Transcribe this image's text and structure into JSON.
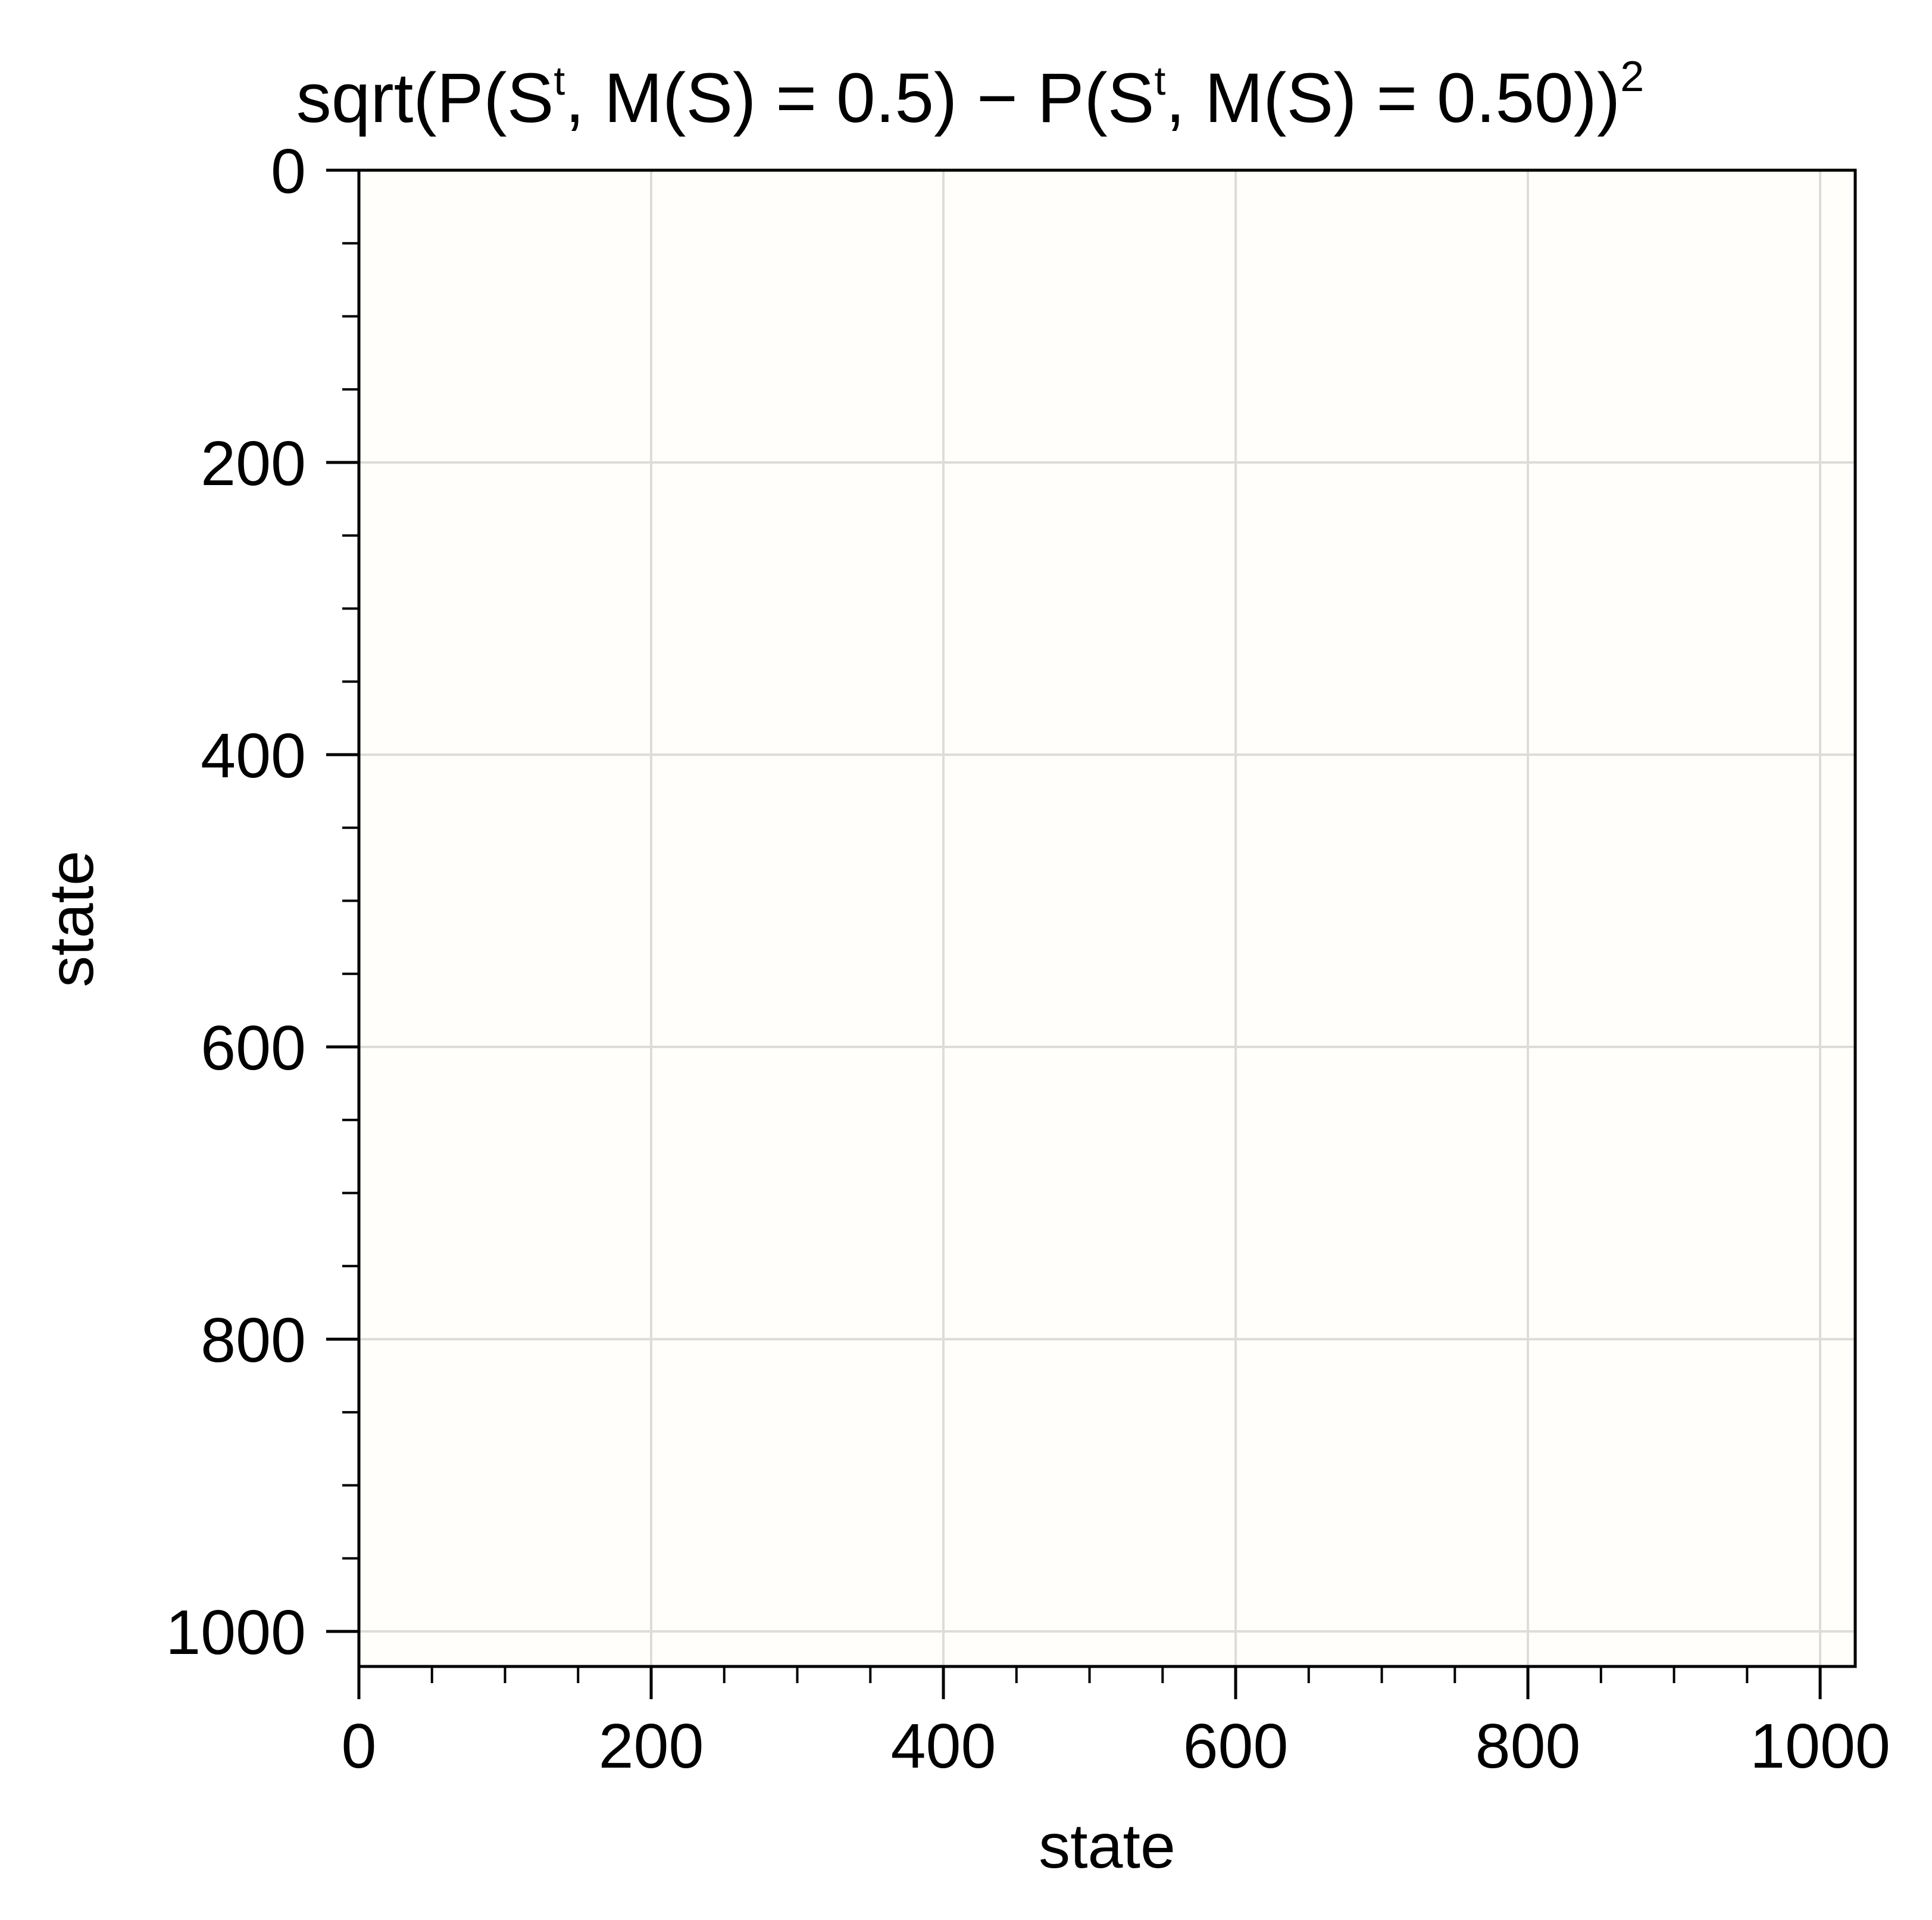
{
  "colors": {
    "plot_background": "#fffefb",
    "grid": "#dcdcdc",
    "axis": "#000000",
    "text": "#000000"
  },
  "chart_data": {
    "type": "heatmap",
    "title": {
      "prefix": "sqrt(P(S",
      "sup1": "t",
      "mid1": ", M(S) = 0.5) − P(S",
      "sup2": "t",
      "mid2": ", M(S) = 0.50))",
      "sup3": "2"
    },
    "xlabel": "state",
    "ylabel": "state",
    "xlim": [
      0,
      1024
    ],
    "ylim": [
      0,
      1024
    ],
    "y_inverted": true,
    "x_major_ticks": [
      0,
      200,
      400,
      600,
      800,
      1000
    ],
    "x_minor_ticks": [
      50,
      100,
      150,
      250,
      300,
      350,
      450,
      500,
      550,
      650,
      700,
      750,
      850,
      900,
      950
    ],
    "y_major_ticks": [
      0,
      200,
      400,
      600,
      800,
      1000
    ],
    "y_minor_ticks": [
      50,
      100,
      150,
      250,
      300,
      350,
      450,
      500,
      550,
      650,
      700,
      750,
      850,
      900,
      950
    ],
    "x_tick_labels": [
      "0",
      "200",
      "400",
      "600",
      "800",
      "1000"
    ],
    "y_tick_labels": [
      "0",
      "200",
      "400",
      "600",
      "800",
      "1000"
    ],
    "grid": true,
    "values_note": "all cells equal (difference is zero everywhere)"
  }
}
